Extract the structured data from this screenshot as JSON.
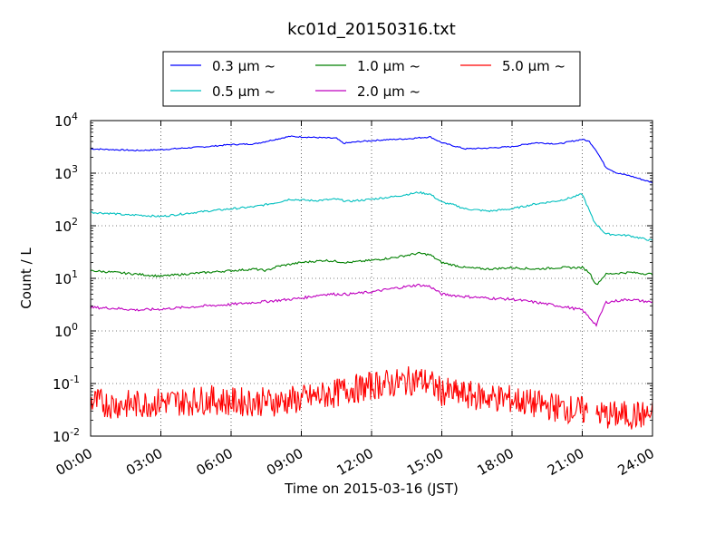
{
  "chart_data": {
    "type": "line",
    "title": "kc01d_20150316.txt",
    "xlabel": "Time on 2015-03-16 (JST)",
    "ylabel": "Count / L",
    "x_ticks": [
      "00:00",
      "03:00",
      "06:00",
      "09:00",
      "12:00",
      "15:00",
      "18:00",
      "21:00",
      "24:00"
    ],
    "x_tick_hours": [
      0,
      3,
      6,
      9,
      12,
      15,
      18,
      21,
      24
    ],
    "xlim_hours": [
      0,
      24
    ],
    "y_scale": "log",
    "ylim": [
      0.01,
      10000
    ],
    "y_ticks": [
      {
        "value": 0.01,
        "base": "10",
        "exp": "-2"
      },
      {
        "value": 0.1,
        "base": "10",
        "exp": "-1"
      },
      {
        "value": 1,
        "base": "10",
        "exp": "0"
      },
      {
        "value": 10,
        "base": "10",
        "exp": "1"
      },
      {
        "value": 100,
        "base": "10",
        "exp": "2"
      },
      {
        "value": 1000,
        "base": "10",
        "exp": "3"
      },
      {
        "value": 10000,
        "base": "10",
        "exp": "4"
      }
    ],
    "grid": true,
    "legend_placement": "top-center, above plot",
    "series": [
      {
        "name": "0.3 μm ~",
        "color": "#0000ff",
        "x_hours": [
          0,
          1,
          2,
          3,
          4,
          5,
          6,
          7,
          7.8,
          8.5,
          9.5,
          10.5,
          10.8,
          11.5,
          12.5,
          13.5,
          14.5,
          15,
          16,
          17,
          18,
          19,
          20,
          20.5,
          21,
          21.3,
          21.6,
          22,
          22.5,
          23,
          24
        ],
        "values": [
          2900,
          2800,
          2700,
          2800,
          3000,
          3200,
          3500,
          3600,
          4300,
          5000,
          4800,
          4600,
          3700,
          4000,
          4300,
          4500,
          4900,
          3800,
          2900,
          3000,
          3200,
          3800,
          3600,
          4000,
          4400,
          4000,
          2700,
          1300,
          1000,
          900,
          660
        ]
      },
      {
        "name": "0.5 μm ~",
        "color": "#00bfbf",
        "x_hours": [
          0,
          1,
          1.5,
          2,
          3,
          4,
          5,
          6,
          7,
          8,
          8.5,
          9.5,
          10.5,
          11,
          12,
          13,
          14,
          14.5,
          15,
          15.5,
          16,
          17,
          18,
          19,
          20,
          20.5,
          21,
          21.5,
          22,
          23,
          24
        ],
        "values": [
          180,
          170,
          160,
          160,
          150,
          170,
          190,
          210,
          230,
          280,
          320,
          300,
          320,
          290,
          320,
          360,
          430,
          400,
          280,
          250,
          210,
          190,
          210,
          260,
          300,
          340,
          400,
          120,
          70,
          65,
          52
        ]
      },
      {
        "name": "1.0 μm ~",
        "color": "#008000",
        "x_hours": [
          0,
          1,
          2,
          3,
          4,
          5,
          6,
          7,
          7.5,
          8,
          9,
          10,
          11,
          12,
          13,
          14,
          14.5,
          15,
          16,
          17,
          18,
          19,
          20,
          21,
          21.3,
          21.6,
          22,
          23,
          24
        ],
        "values": [
          14,
          13,
          12,
          11,
          12,
          13,
          14,
          15,
          14,
          17,
          20,
          22,
          20,
          22,
          25,
          30,
          28,
          20,
          16,
          15,
          16,
          15,
          16,
          16,
          13,
          7.5,
          12,
          13,
          12
        ]
      },
      {
        "name": "2.0 μm ~",
        "color": "#bf00bf",
        "x_hours": [
          0,
          1,
          2,
          3,
          4,
          5,
          6,
          7,
          8,
          9,
          10,
          11,
          12,
          13,
          14,
          14.5,
          15,
          16,
          17,
          18,
          19,
          20,
          21,
          21.3,
          21.6,
          22,
          23,
          24
        ],
        "values": [
          2.8,
          2.7,
          2.5,
          2.6,
          2.8,
          3.0,
          3.2,
          3.5,
          3.8,
          4.2,
          5.0,
          5.0,
          5.5,
          6.5,
          7.5,
          7.0,
          5.0,
          4.5,
          4.2,
          4.0,
          3.5,
          3.0,
          2.5,
          1.8,
          1.3,
          3.5,
          4.0,
          3.5
        ]
      },
      {
        "name": "5.0 μm ~",
        "color": "#ff0000",
        "x_hours": [
          0,
          1,
          2,
          3,
          4,
          5,
          6,
          7,
          8,
          9,
          10,
          10.5,
          11,
          11.5,
          12,
          12.5,
          13,
          13.5,
          14,
          14.5,
          15,
          16,
          17,
          18,
          19,
          20,
          21,
          22,
          23,
          24
        ],
        "values": [
          0.045,
          0.04,
          0.04,
          0.045,
          0.045,
          0.05,
          0.045,
          0.045,
          0.045,
          0.05,
          0.06,
          0.065,
          0.08,
          0.08,
          0.09,
          0.1,
          0.1,
          0.11,
          0.12,
          0.1,
          0.07,
          0.06,
          0.055,
          0.05,
          0.04,
          0.035,
          0.03,
          0.025,
          0.025,
          0.025
        ]
      }
    ]
  }
}
